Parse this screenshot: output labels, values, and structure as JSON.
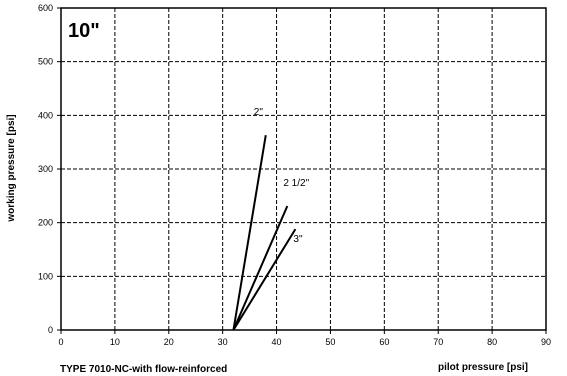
{
  "chart_data": {
    "type": "line",
    "title": "10\"",
    "subtitle": "TYPE 7010-NC-with flow-reinforced",
    "xlabel": "pilot pressure [psi]",
    "ylabel": "working pressure [psi]",
    "xlim": [
      0,
      90
    ],
    "ylim": [
      0,
      600
    ],
    "xticks": [
      "0",
      "10",
      "20",
      "30",
      "40",
      "50",
      "60",
      "70",
      "80",
      "90"
    ],
    "yticks": [
      "0",
      "100",
      "200",
      "300",
      "400",
      "500",
      "600"
    ],
    "grid": true,
    "line_color": "#000000",
    "series": [
      {
        "name": "2\"",
        "x": [
          32,
          38
        ],
        "y": [
          0,
          363
        ]
      },
      {
        "name": "2 1/2\"",
        "x": [
          32,
          42
        ],
        "y": [
          0,
          231
        ]
      },
      {
        "name": "3\"",
        "x": [
          32,
          43.5
        ],
        "y": [
          0,
          188
        ]
      }
    ]
  }
}
